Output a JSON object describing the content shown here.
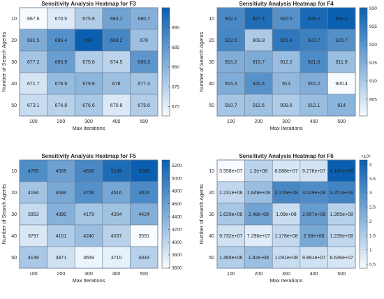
{
  "chart_data": [
    {
      "type": "heatmap",
      "title": "Sensitivity Analysis Heatmap for F3",
      "xlabel": "Max Iterations",
      "ylabel": "Number of Search Agents",
      "x": [
        "100",
        "200",
        "300",
        "400",
        "500"
      ],
      "y": [
        "10",
        "20",
        "30",
        "40",
        "50"
      ],
      "values": [
        [
          667.6,
          670.5,
          675.8,
          683.1,
          680.7
        ],
        [
          681.5,
          686.4,
          695,
          688.2,
          678
        ],
        [
          677.2,
          683.9,
          675.8,
          674.5,
          685.3
        ],
        [
          671.7,
          678.9,
          679.8,
          678,
          677.3
        ],
        [
          673.1,
          674.8,
          676.6,
          670.8,
          675.6
        ]
      ],
      "labels": [
        [
          "667.6",
          "670.5",
          "675.8",
          "683.1",
          "680.7"
        ],
        [
          "681.5",
          "686.4",
          "695",
          "688.2",
          "678"
        ],
        [
          "677.2",
          "683.9",
          "675.8",
          "674.5",
          "685.3"
        ],
        [
          "671.7",
          "678.9",
          "679.8",
          "678",
          "677.3"
        ],
        [
          "673.1",
          "674.8",
          "676.6",
          "670.8",
          "675.6"
        ]
      ],
      "colorbar": {
        "range": [
          667.6,
          695
        ],
        "ticks": [
          "670",
          "675",
          "680",
          "685",
          "690"
        ],
        "tick_values": [
          670,
          675,
          680,
          685,
          690
        ],
        "exponent": ""
      }
    },
    {
      "type": "heatmap",
      "title": "Sensitivity Analysis Heatmap for F4",
      "xlabel": "Max Iterations",
      "ylabel": "Number of Search Agents",
      "x": [
        "100",
        "200",
        "300",
        "400",
        "500"
      ],
      "y": [
        "10",
        "20",
        "30",
        "40",
        "50"
      ],
      "values": [
        [
          922.1,
          927.4,
          920.5,
          928.2,
          930.1
        ],
        [
          922.5,
          909.8,
          925.4,
          923.7,
          920.7
        ],
        [
          915.2,
          915.7,
          912.2,
          921.6,
          911.9
        ],
        [
          915.3,
          920.4,
          913,
          915.2,
          900.4
        ],
        [
          910.7,
          911.6,
          909.6,
          912.1,
          914
        ]
      ],
      "labels": [
        [
          "922.1",
          "927.4",
          "920.5",
          "928.2",
          "930.1"
        ],
        [
          "922.5",
          "909.8",
          "925.4",
          "923.7",
          "920.7"
        ],
        [
          "915.2",
          "915.7",
          "912.2",
          "921.6",
          "911.9"
        ],
        [
          "915.3",
          "920.4",
          "913",
          "915.2",
          "900.4"
        ],
        [
          "910.7",
          "911.6",
          "909.6",
          "912.1",
          "914"
        ]
      ],
      "colorbar": {
        "range": [
          900.4,
          930.1
        ],
        "ticks": [
          "905",
          "910",
          "915",
          "920",
          "925",
          "930"
        ],
        "tick_values": [
          905,
          910,
          915,
          920,
          925,
          930
        ],
        "exponent": ""
      }
    },
    {
      "type": "heatmap",
      "title": "Sensitivity Analysis Heatmap for F5",
      "xlabel": "Max Iterations",
      "ylabel": "Number of Search Agents",
      "x": [
        "100",
        "200",
        "300",
        "400",
        "500"
      ],
      "y": [
        "10",
        "20",
        "30",
        "40",
        "50"
      ],
      "values": [
        [
          4789,
          4566,
          4838,
          5149,
          5286
        ],
        [
          4194,
          4494,
          4756,
          4516,
          4824
        ],
        [
          3953,
          4390,
          4179,
          4204,
          4424
        ],
        [
          3797,
          4101,
          4240,
          4037,
          3591
        ],
        [
          4149,
          3871,
          3659,
          3710,
          4043
        ]
      ],
      "labels": [
        [
          "4789",
          "4566",
          "4838",
          "5149",
          "5286"
        ],
        [
          "4194",
          "4494",
          "4756",
          "4516",
          "4824"
        ],
        [
          "3953",
          "4390",
          "4179",
          "4204",
          "4424"
        ],
        [
          "3797",
          "4101",
          "4240",
          "4037",
          "3591"
        ],
        [
          "4149",
          "3871",
          "3659",
          "3710",
          "4043"
        ]
      ],
      "colorbar": {
        "range": [
          3591,
          5286
        ],
        "ticks": [
          "3600",
          "3800",
          "4000",
          "4200",
          "4400",
          "4600",
          "4800",
          "5000",
          "5200"
        ],
        "tick_values": [
          3600,
          3800,
          4000,
          4200,
          4400,
          4600,
          4800,
          5000,
          5200
        ],
        "exponent": ""
      }
    },
    {
      "type": "heatmap",
      "title": "Sensitivity Analysis Heatmap for F6",
      "xlabel": "Max Iterations",
      "ylabel": "Number of Search Agents",
      "x": [
        "100",
        "200",
        "300",
        "400",
        "500"
      ],
      "y": [
        "10",
        "20",
        "30",
        "40",
        "50"
      ],
      "values": [
        [
          35580000,
          130000000,
          86880000,
          92760000,
          414700000
        ],
        [
          123100000,
          184900000,
          317600000,
          302900000,
          325100000
        ],
        [
          162800000,
          248000000,
          109000000,
          266700000,
          136500000
        ],
        [
          97320000,
          72960000,
          117800000,
          238000000,
          123500000
        ],
        [
          146500000,
          182000000,
          109100000,
          98910000,
          86360000
        ]
      ],
      "labels": [
        [
          "3.558e+07",
          "1.3e+08",
          "8.688e+07",
          "9.276e+07",
          "4.147e+08"
        ],
        [
          "1.231e+08",
          "1.849e+08",
          "3.176e+08",
          "3.029e+08",
          "3.251e+08"
        ],
        [
          "1.628e+08",
          "2.48e+08",
          "1.09e+08",
          "2.667e+08",
          "1.365e+08"
        ],
        [
          "9.732e+07",
          "7.296e+07",
          "1.178e+08",
          "2.38e+08",
          "1.235e+08"
        ],
        [
          "1.465e+08",
          "1.82e+08",
          "1.091e+08",
          "9.891e+07",
          "8.636e+07"
        ]
      ],
      "colorbar": {
        "range": [
          35580000,
          414700000
        ],
        "ticks": [
          "0.5",
          "1",
          "1.5",
          "2",
          "2.5",
          "3",
          "3.5",
          "4"
        ],
        "tick_values": [
          50000000,
          100000000,
          150000000,
          200000000,
          250000000,
          300000000,
          350000000,
          400000000
        ],
        "exponent": "×10⁸"
      }
    }
  ],
  "colors": {
    "low": "#f7fbff",
    "high": "#0a5fb0",
    "grid": "#6b7f99",
    "text": "#1f1f1f"
  }
}
